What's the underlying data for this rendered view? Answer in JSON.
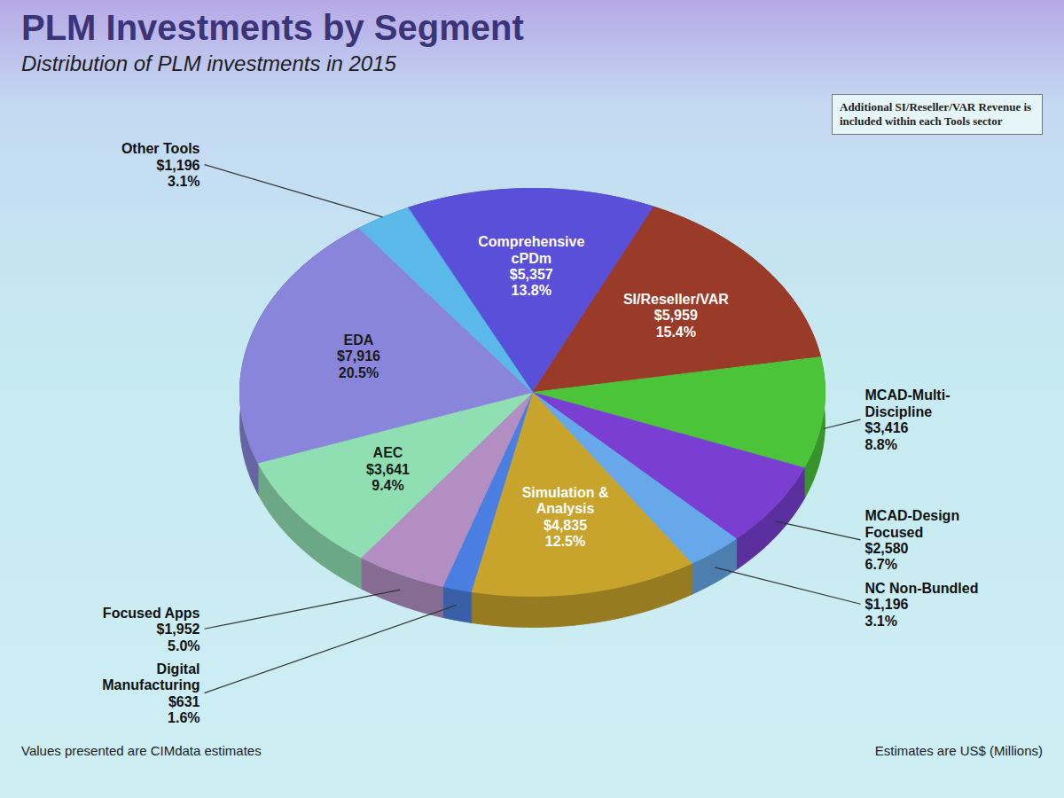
{
  "chart_data": {
    "type": "pie",
    "title": "PLM Investments by Segment",
    "subtitle": "Distribution of PLM investments in 2015",
    "categories": [
      "Comprehensive cPDm",
      "SI/Reseller/VAR",
      "MCAD-Multi-Discipline",
      "MCAD-Design Focused",
      "NC Non-Bundled",
      "Simulation & Analysis",
      "Digital Manufacturing",
      "Focused Apps",
      "AEC",
      "EDA",
      "Other Tools"
    ],
    "values": [
      13.8,
      15.4,
      8.8,
      6.7,
      3.1,
      12.5,
      1.6,
      5.0,
      9.4,
      20.5,
      3.1
    ],
    "value_labels": [
      "13.8%",
      "15.4%",
      "8.8%",
      "6.7%",
      "3.1%",
      "12.5%",
      "1.6%",
      "5.0%",
      "9.4%",
      "20.5%",
      "3.1%"
    ],
    "amounts": [
      5357,
      5959,
      3416,
      2580,
      1196,
      4835,
      631,
      1952,
      3641,
      7916,
      1196
    ],
    "amount_labels": [
      "$5,357",
      "$5,959",
      "$3,416",
      "$2,580",
      "$1,196",
      "$4,835",
      "$631",
      "$1,952",
      "$3,641",
      "$7,916",
      "$1,196"
    ],
    "colors": [
      "#5a4fd8",
      "#9a3a28",
      "#4cc43a",
      "#7a3fd2",
      "#66a8ea",
      "#c8a42c",
      "#4a7ee0",
      "#b28ec2",
      "#8fdfb2",
      "#8985da",
      "#5bb9ea"
    ],
    "data_labels": true,
    "annotations": [
      "Additional SI/Reseller/VAR Revenue is included within each Tools sector"
    ],
    "footnotes": [
      "Values presented are CIMdata estimates",
      "Estimates are US$ (Millions)"
    ]
  }
}
